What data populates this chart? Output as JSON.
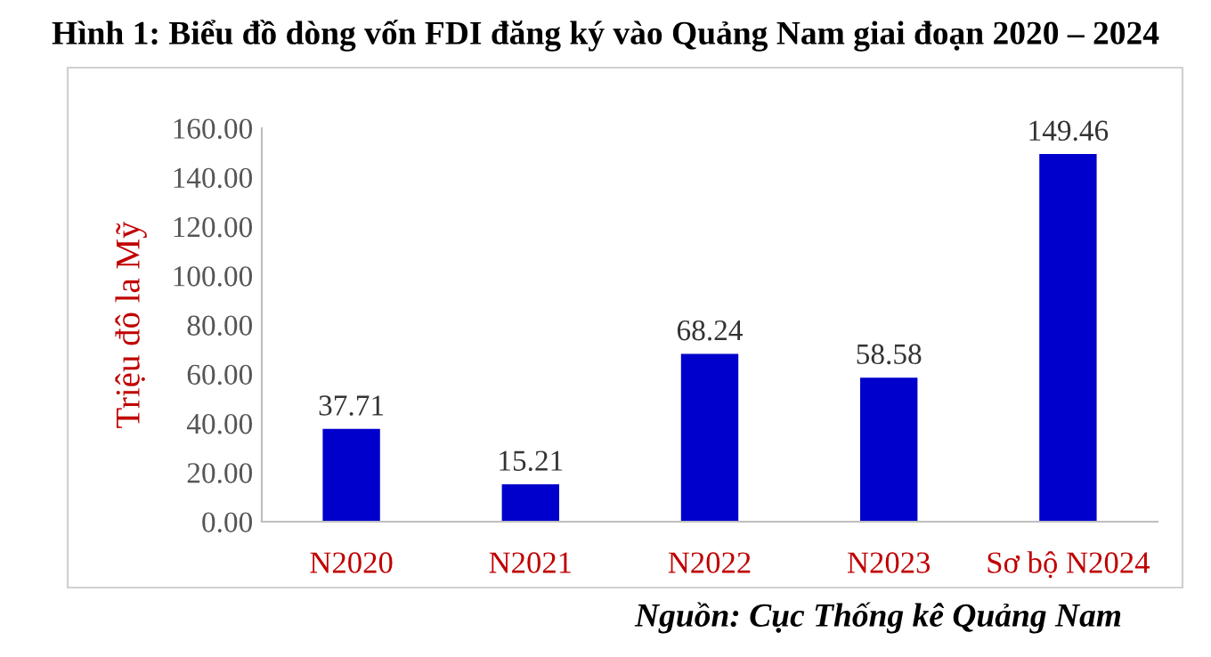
{
  "chart_data": {
    "type": "bar",
    "title": "Hình 1: Biểu đồ dòng vốn FDI đăng ký vào Quảng Nam giai đoạn 2020 – 2024",
    "ylabel": "Triệu đô la Mỹ",
    "categories": [
      "N2020",
      "N2021",
      "N2022",
      "N2023",
      "Sơ bộ N2024"
    ],
    "values": [
      37.71,
      15.21,
      68.24,
      58.58,
      149.46
    ],
    "color": "#0000cc",
    "data_labels": true,
    "ylim": [
      0,
      160
    ],
    "yticks": [
      {
        "value": 0,
        "label": "0.00"
      },
      {
        "value": 20,
        "label": "20.00"
      },
      {
        "value": 40,
        "label": "40.00"
      },
      {
        "value": 60,
        "label": "60.00"
      },
      {
        "value": 80,
        "label": "80.00"
      },
      {
        "value": 100,
        "label": "100.00"
      },
      {
        "value": 120,
        "label": "120.00"
      },
      {
        "value": 140,
        "label": "140.00"
      },
      {
        "value": 160,
        "label": "160.00"
      }
    ],
    "grid": false,
    "annotations": [
      "Nguồn: Cục Thống kê Quảng Nam"
    ]
  }
}
